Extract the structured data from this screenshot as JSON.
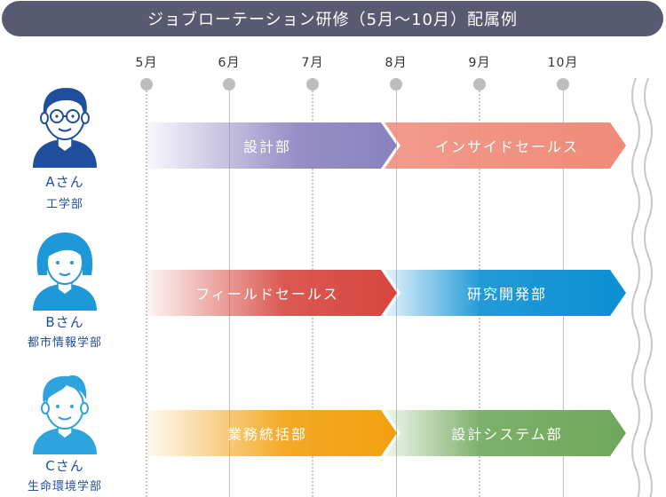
{
  "title": "ジョブローテーション研修（5月〜10月）配属例",
  "months": [
    "5月",
    "6月",
    "7月",
    "8月",
    "9月",
    "10月"
  ],
  "people": [
    {
      "name": "Aさん",
      "department": "工学部",
      "assignments": [
        {
          "label": "設計部",
          "from": "5月",
          "to": "7月"
        },
        {
          "label": "インサイドセールス",
          "from": "8月",
          "to": "10月"
        }
      ]
    },
    {
      "name": "Bさん",
      "department": "都市情報学部",
      "assignments": [
        {
          "label": "フィールドセールス",
          "from": "5月",
          "to": "7月"
        },
        {
          "label": "研究開発部",
          "from": "8月",
          "to": "10月"
        }
      ]
    },
    {
      "name": "Cさん",
      "department": "生命環境学部",
      "assignments": [
        {
          "label": "業務統括部",
          "from": "5月",
          "to": "7月"
        },
        {
          "label": "設計システム部",
          "from": "8月",
          "to": "10月"
        }
      ]
    }
  ],
  "colors": {
    "title_bg": "#575a70",
    "timeline_dot": "#bdbdbd",
    "person_text": "#1f4f9c",
    "bar_design": "#8a82bf",
    "bar_inside_sales": "#ef8a78",
    "bar_field_sales": "#d7463e",
    "bar_rnd": "#0a8fd4",
    "bar_operations": "#f2a00e",
    "bar_design_system": "#6fa85a",
    "avatar_a": "#1f4f9c",
    "avatar_b": "#1e98d6",
    "avatar_c": "#2ea3dd"
  },
  "icons": [
    "person-with-glasses-icon",
    "person-with-bob-hair-icon",
    "person-with-short-hair-icon",
    "wave-break-icon"
  ]
}
